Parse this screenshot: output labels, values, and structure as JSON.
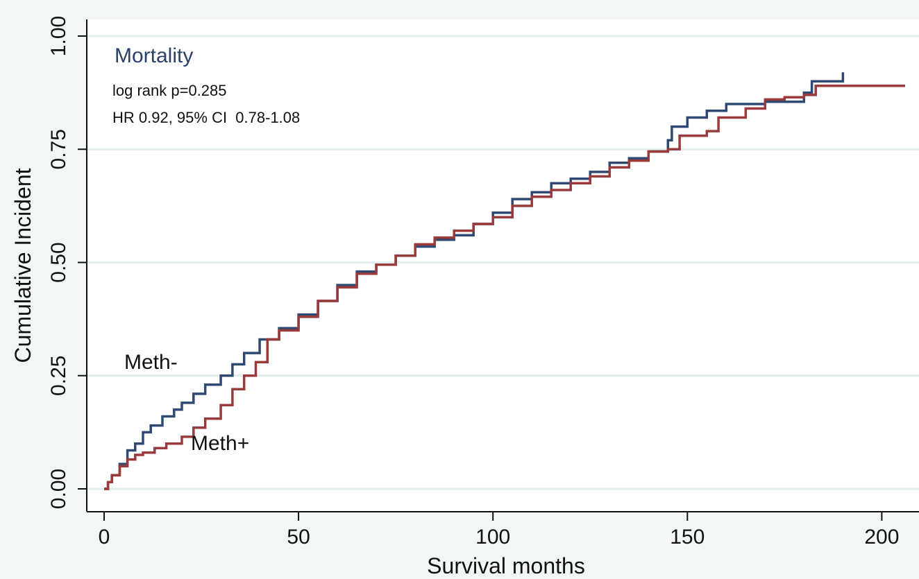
{
  "chart_data": {
    "type": "line",
    "title": "Mortality",
    "annotations": [
      "log rank p=0.285",
      "HR 0.92, 95% CI  0.78-1.08"
    ],
    "xlabel": "Survival months",
    "ylabel": "Cumulative Incident",
    "xlim": [
      0,
      206
    ],
    "ylim": [
      0,
      1
    ],
    "xticks": [
      "0",
      "50",
      "100",
      "150",
      "200"
    ],
    "yticks": [
      "0.00",
      "0.25",
      "0.50",
      "0.75",
      "1.00"
    ],
    "grid": true,
    "series": [
      {
        "name": "Meth-",
        "color": "#2f4a72",
        "points": [
          [
            0,
            0
          ],
          [
            1,
            0.015
          ],
          [
            2,
            0.03
          ],
          [
            4,
            0.055
          ],
          [
            6,
            0.085
          ],
          [
            8,
            0.1
          ],
          [
            10,
            0.125
          ],
          [
            12,
            0.14
          ],
          [
            15,
            0.16
          ],
          [
            18,
            0.175
          ],
          [
            20,
            0.19
          ],
          [
            23,
            0.21
          ],
          [
            26,
            0.23
          ],
          [
            30,
            0.25
          ],
          [
            33,
            0.275
          ],
          [
            36,
            0.3
          ],
          [
            40,
            0.33
          ],
          [
            45,
            0.355
          ],
          [
            50,
            0.385
          ],
          [
            55,
            0.415
          ],
          [
            60,
            0.45
          ],
          [
            65,
            0.48
          ],
          [
            70,
            0.495
          ],
          [
            75,
            0.515
          ],
          [
            80,
            0.535
          ],
          [
            85,
            0.55
          ],
          [
            90,
            0.56
          ],
          [
            95,
            0.585
          ],
          [
            100,
            0.61
          ],
          [
            105,
            0.64
          ],
          [
            110,
            0.655
          ],
          [
            115,
            0.675
          ],
          [
            120,
            0.685
          ],
          [
            125,
            0.7
          ],
          [
            130,
            0.72
          ],
          [
            135,
            0.73
          ],
          [
            140,
            0.745
          ],
          [
            145,
            0.77
          ],
          [
            146,
            0.8
          ],
          [
            150,
            0.82
          ],
          [
            155,
            0.835
          ],
          [
            160,
            0.85
          ],
          [
            170,
            0.855
          ],
          [
            180,
            0.875
          ],
          [
            182,
            0.9
          ],
          [
            190,
            0.92
          ]
        ]
      },
      {
        "name": "Meth+",
        "color": "#9b3a3a",
        "points": [
          [
            0,
            0
          ],
          [
            1,
            0.015
          ],
          [
            2,
            0.03
          ],
          [
            4,
            0.05
          ],
          [
            6,
            0.065
          ],
          [
            8,
            0.075
          ],
          [
            10,
            0.08
          ],
          [
            13,
            0.09
          ],
          [
            16,
            0.1
          ],
          [
            20,
            0.115
          ],
          [
            23,
            0.135
          ],
          [
            26,
            0.155
          ],
          [
            30,
            0.185
          ],
          [
            33,
            0.22
          ],
          [
            36,
            0.25
          ],
          [
            39,
            0.28
          ],
          [
            42,
            0.33
          ],
          [
            45,
            0.35
          ],
          [
            50,
            0.38
          ],
          [
            55,
            0.415
          ],
          [
            60,
            0.445
          ],
          [
            65,
            0.475
          ],
          [
            70,
            0.495
          ],
          [
            75,
            0.515
          ],
          [
            80,
            0.54
          ],
          [
            85,
            0.555
          ],
          [
            90,
            0.57
          ],
          [
            95,
            0.585
          ],
          [
            100,
            0.6
          ],
          [
            105,
            0.625
          ],
          [
            110,
            0.645
          ],
          [
            115,
            0.66
          ],
          [
            120,
            0.675
          ],
          [
            125,
            0.69
          ],
          [
            130,
            0.71
          ],
          [
            135,
            0.725
          ],
          [
            140,
            0.745
          ],
          [
            145,
            0.75
          ],
          [
            148,
            0.78
          ],
          [
            155,
            0.79
          ],
          [
            158,
            0.82
          ],
          [
            165,
            0.84
          ],
          [
            170,
            0.86
          ],
          [
            175,
            0.865
          ],
          [
            180,
            0.87
          ],
          [
            183,
            0.89
          ],
          [
            206,
            0.89
          ]
        ]
      }
    ]
  }
}
